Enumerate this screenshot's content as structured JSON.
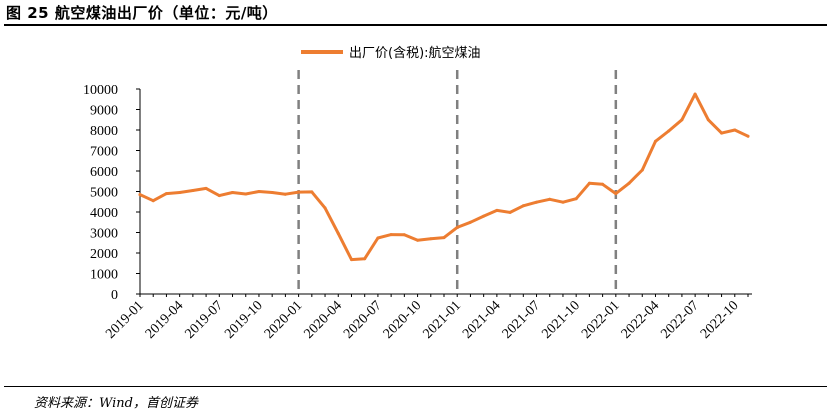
{
  "header": {
    "title": "图 25 航空煤油出厂价（单位：元/吨）"
  },
  "footer": {
    "source": "资料来源：Wind，首创证券"
  },
  "chart_data": {
    "type": "line",
    "title": "",
    "xlabel": "",
    "ylabel": "",
    "ylim": [
      0,
      10000
    ],
    "yticks": [
      0,
      1000,
      2000,
      3000,
      4000,
      5000,
      6000,
      7000,
      8000,
      9000,
      10000
    ],
    "xticks": [
      "2019-01",
      "2019-04",
      "2019-07",
      "2019-10",
      "2020-01",
      "2020-04",
      "2020-07",
      "2020-10",
      "2021-01",
      "2021-04",
      "2021-07",
      "2021-10",
      "2022-01",
      "2022-04",
      "2022-07",
      "2022-10"
    ],
    "x": [
      "2019-01",
      "2019-02",
      "2019-03",
      "2019-04",
      "2019-05",
      "2019-06",
      "2019-07",
      "2019-08",
      "2019-09",
      "2019-10",
      "2019-11",
      "2019-12",
      "2020-01",
      "2020-02",
      "2020-03",
      "2020-04",
      "2020-05",
      "2020-06",
      "2020-07",
      "2020-08",
      "2020-09",
      "2020-10",
      "2020-11",
      "2020-12",
      "2021-01",
      "2021-02",
      "2021-03",
      "2021-04",
      "2021-05",
      "2021-06",
      "2021-07",
      "2021-08",
      "2021-09",
      "2021-10",
      "2021-11",
      "2021-12",
      "2022-01",
      "2022-02",
      "2022-03",
      "2022-04",
      "2022-05",
      "2022-06",
      "2022-07",
      "2022-08",
      "2022-09",
      "2022-10",
      "2022-11"
    ],
    "series": [
      {
        "name": "出厂价(含税):航空煤油",
        "color": "#ED7D31",
        "values": [
          4850,
          4550,
          4900,
          4950,
          5050,
          5150,
          4800,
          4950,
          4880,
          5000,
          4950,
          4870,
          4970,
          4980,
          4200,
          2950,
          1680,
          1720,
          2730,
          2900,
          2890,
          2620,
          2700,
          2750,
          3250,
          3500,
          3800,
          4080,
          3980,
          4300,
          4480,
          4620,
          4480,
          4650,
          5400,
          5350,
          4900,
          5400,
          6050,
          7450,
          7950,
          8500,
          9750,
          8500,
          7850,
          8000,
          7700
        ]
      }
    ],
    "vlines": [
      "2020-01",
      "2021-01",
      "2022-01"
    ],
    "vline_color": "#808080",
    "legend": "top-center",
    "grid": false
  }
}
